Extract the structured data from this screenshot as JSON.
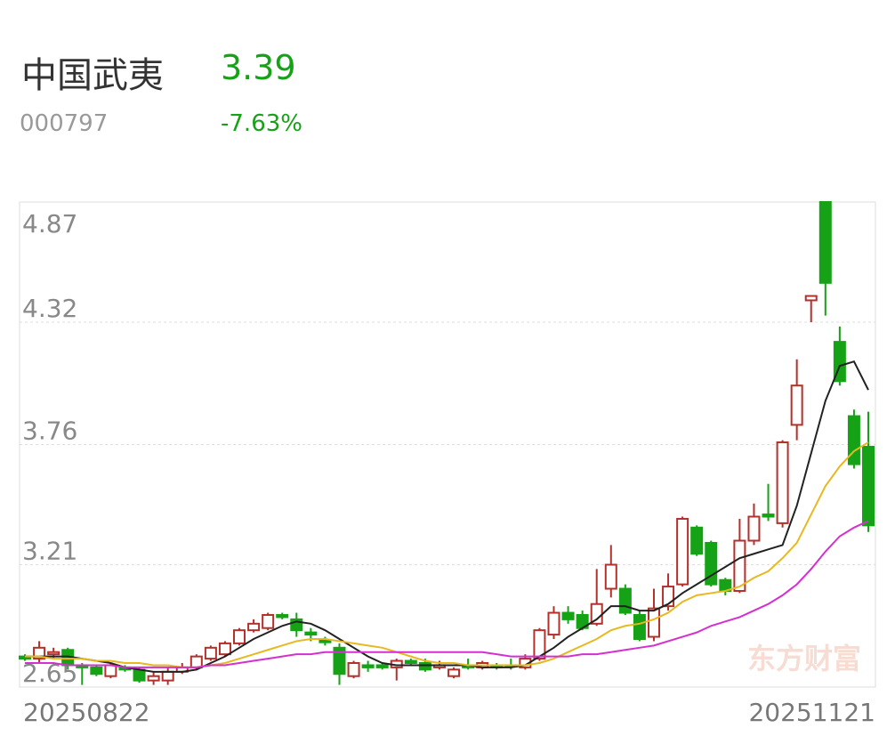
{
  "header": {
    "name": "中国武夷",
    "price": "3.39",
    "code": "000797",
    "change": "-7.63%"
  },
  "chart_data": {
    "type": "candlestick",
    "watermark": "东方财富",
    "categories": [
      "20250822",
      null,
      null,
      null,
      null,
      null,
      null,
      null,
      null,
      null,
      null,
      null,
      null,
      null,
      null,
      null,
      null,
      null,
      null,
      null,
      null,
      null,
      null,
      null,
      null,
      null,
      null,
      null,
      null,
      null,
      null,
      null,
      null,
      null,
      null,
      null,
      null,
      null,
      null,
      null,
      null,
      null,
      null,
      null,
      null,
      null,
      null,
      null,
      null,
      null,
      null,
      null,
      null,
      null,
      null,
      null,
      null,
      null,
      null,
      "20251121"
    ],
    "open": [
      2.79,
      2.78,
      2.8,
      2.82,
      2.75,
      2.74,
      2.7,
      2.74,
      2.73,
      2.68,
      2.68,
      2.72,
      2.74,
      2.78,
      2.8,
      2.85,
      2.91,
      2.92,
      2.98,
      2.96,
      2.9,
      2.865,
      2.83,
      2.7,
      2.75,
      2.75,
      2.74,
      2.77,
      2.76,
      2.74,
      2.7,
      2.75,
      2.74,
      2.75,
      2.75,
      2.74,
      2.78,
      2.89,
      2.99,
      2.98,
      2.94,
      3.1,
      3.1,
      2.98,
      2.88,
      3.02,
      3.12,
      3.38,
      3.31,
      3.14,
      3.09,
      3.32,
      3.44,
      3.4,
      3.85,
      4.42,
      4.87,
      4.23,
      3.89,
      3.75
    ],
    "close": [
      2.78,
      2.83,
      2.81,
      2.75,
      2.74,
      2.71,
      2.75,
      2.73,
      2.68,
      2.7,
      2.72,
      2.74,
      2.79,
      2.83,
      2.85,
      2.91,
      2.94,
      2.98,
      2.97,
      2.91,
      2.89,
      2.855,
      2.71,
      2.76,
      2.74,
      2.74,
      2.77,
      2.76,
      2.73,
      2.75,
      2.73,
      2.74,
      2.76,
      2.74,
      2.745,
      2.78,
      2.91,
      2.99,
      2.96,
      2.92,
      3.03,
      3.21,
      2.99,
      2.87,
      3.01,
      3.11,
      3.42,
      3.26,
      3.12,
      3.09,
      3.32,
      3.43,
      3.43,
      3.77,
      4.03,
      4.44,
      4.5,
      4.05,
      3.67,
      3.39
    ],
    "high": [
      2.8,
      2.86,
      2.83,
      2.83,
      2.76,
      2.75,
      2.76,
      2.75,
      2.74,
      2.72,
      2.74,
      2.76,
      2.8,
      2.84,
      2.86,
      2.92,
      2.96,
      2.99,
      2.99,
      2.99,
      2.92,
      2.88,
      2.85,
      2.77,
      2.77,
      2.76,
      2.78,
      2.78,
      2.78,
      2.77,
      2.74,
      2.78,
      2.77,
      2.76,
      2.78,
      2.8,
      2.92,
      3.02,
      3.02,
      3.0,
      3.19,
      3.3,
      3.12,
      3.0,
      3.1,
      3.17,
      3.43,
      3.39,
      3.32,
      3.15,
      3.42,
      3.49,
      3.58,
      3.78,
      4.15,
      4.44,
      4.87,
      4.3,
      3.92,
      3.91
    ],
    "low": [
      2.77,
      2.76,
      2.78,
      2.73,
      2.66,
      2.7,
      2.69,
      2.72,
      2.67,
      2.66,
      2.66,
      2.71,
      2.73,
      2.77,
      2.79,
      2.84,
      2.9,
      2.91,
      2.96,
      2.88,
      2.86,
      2.84,
      2.66,
      2.69,
      2.72,
      2.73,
      2.68,
      2.75,
      2.72,
      2.73,
      2.69,
      2.73,
      2.73,
      2.73,
      2.73,
      2.73,
      2.77,
      2.87,
      2.94,
      2.91,
      2.93,
      3.06,
      2.98,
      2.86,
      2.86,
      3.0,
      3.11,
      3.25,
      3.11,
      3.07,
      3.08,
      3.3,
      3.41,
      3.38,
      3.78,
      4.32,
      4.35,
      4.03,
      3.65,
      3.36
    ],
    "up_color": "#b3302b",
    "down_color": "#16a216",
    "lines": [
      {
        "color": "#222222",
        "values": [
          2.79,
          2.79,
          2.79,
          2.79,
          2.78,
          2.77,
          2.76,
          2.74,
          2.73,
          2.72,
          2.72,
          2.72,
          2.73,
          2.76,
          2.79,
          2.83,
          2.87,
          2.9,
          2.93,
          2.95,
          2.94,
          2.91,
          2.87,
          2.83,
          2.79,
          2.76,
          2.75,
          2.75,
          2.75,
          2.75,
          2.75,
          2.75,
          2.74,
          2.74,
          2.74,
          2.75,
          2.79,
          2.83,
          2.88,
          2.92,
          2.96,
          3.02,
          3.02,
          3.0,
          3.0,
          3.03,
          3.08,
          3.12,
          3.16,
          3.2,
          3.24,
          3.26,
          3.28,
          3.3,
          3.48,
          3.72,
          3.96,
          4.12,
          4.14,
          4.01
        ]
      },
      {
        "color": "#e8b820",
        "values": [
          2.79,
          2.79,
          2.78,
          2.78,
          2.78,
          2.77,
          2.77,
          2.76,
          2.76,
          2.75,
          2.75,
          2.74,
          2.74,
          2.75,
          2.76,
          2.78,
          2.8,
          2.82,
          2.84,
          2.86,
          2.87,
          2.87,
          2.86,
          2.85,
          2.84,
          2.83,
          2.81,
          2.79,
          2.77,
          2.76,
          2.76,
          2.75,
          2.75,
          2.75,
          2.75,
          2.75,
          2.76,
          2.78,
          2.81,
          2.84,
          2.87,
          2.91,
          2.93,
          2.94,
          2.96,
          2.99,
          3.04,
          3.07,
          3.08,
          3.09,
          3.11,
          3.15,
          3.18,
          3.24,
          3.31,
          3.44,
          3.57,
          3.66,
          3.73,
          3.77
        ]
      },
      {
        "color": "#d62fd0",
        "values": [
          2.76,
          2.76,
          2.76,
          2.75,
          2.75,
          2.75,
          2.75,
          2.74,
          2.74,
          2.74,
          2.74,
          2.74,
          2.74,
          2.75,
          2.75,
          2.76,
          2.77,
          2.78,
          2.79,
          2.8,
          2.8,
          2.81,
          2.81,
          2.81,
          2.81,
          2.81,
          2.81,
          2.81,
          2.81,
          2.81,
          2.81,
          2.81,
          2.81,
          2.8,
          2.79,
          2.79,
          2.79,
          2.79,
          2.79,
          2.8,
          2.8,
          2.81,
          2.82,
          2.83,
          2.84,
          2.86,
          2.88,
          2.9,
          2.93,
          2.95,
          2.97,
          3.0,
          3.03,
          3.07,
          3.12,
          3.19,
          3.27,
          3.34,
          3.38,
          3.41
        ]
      }
    ],
    "ylim": [
      2.65,
      4.87
    ],
    "yticks": [
      4.87,
      4.32,
      3.76,
      3.21,
      2.65
    ],
    "grid": true
  }
}
